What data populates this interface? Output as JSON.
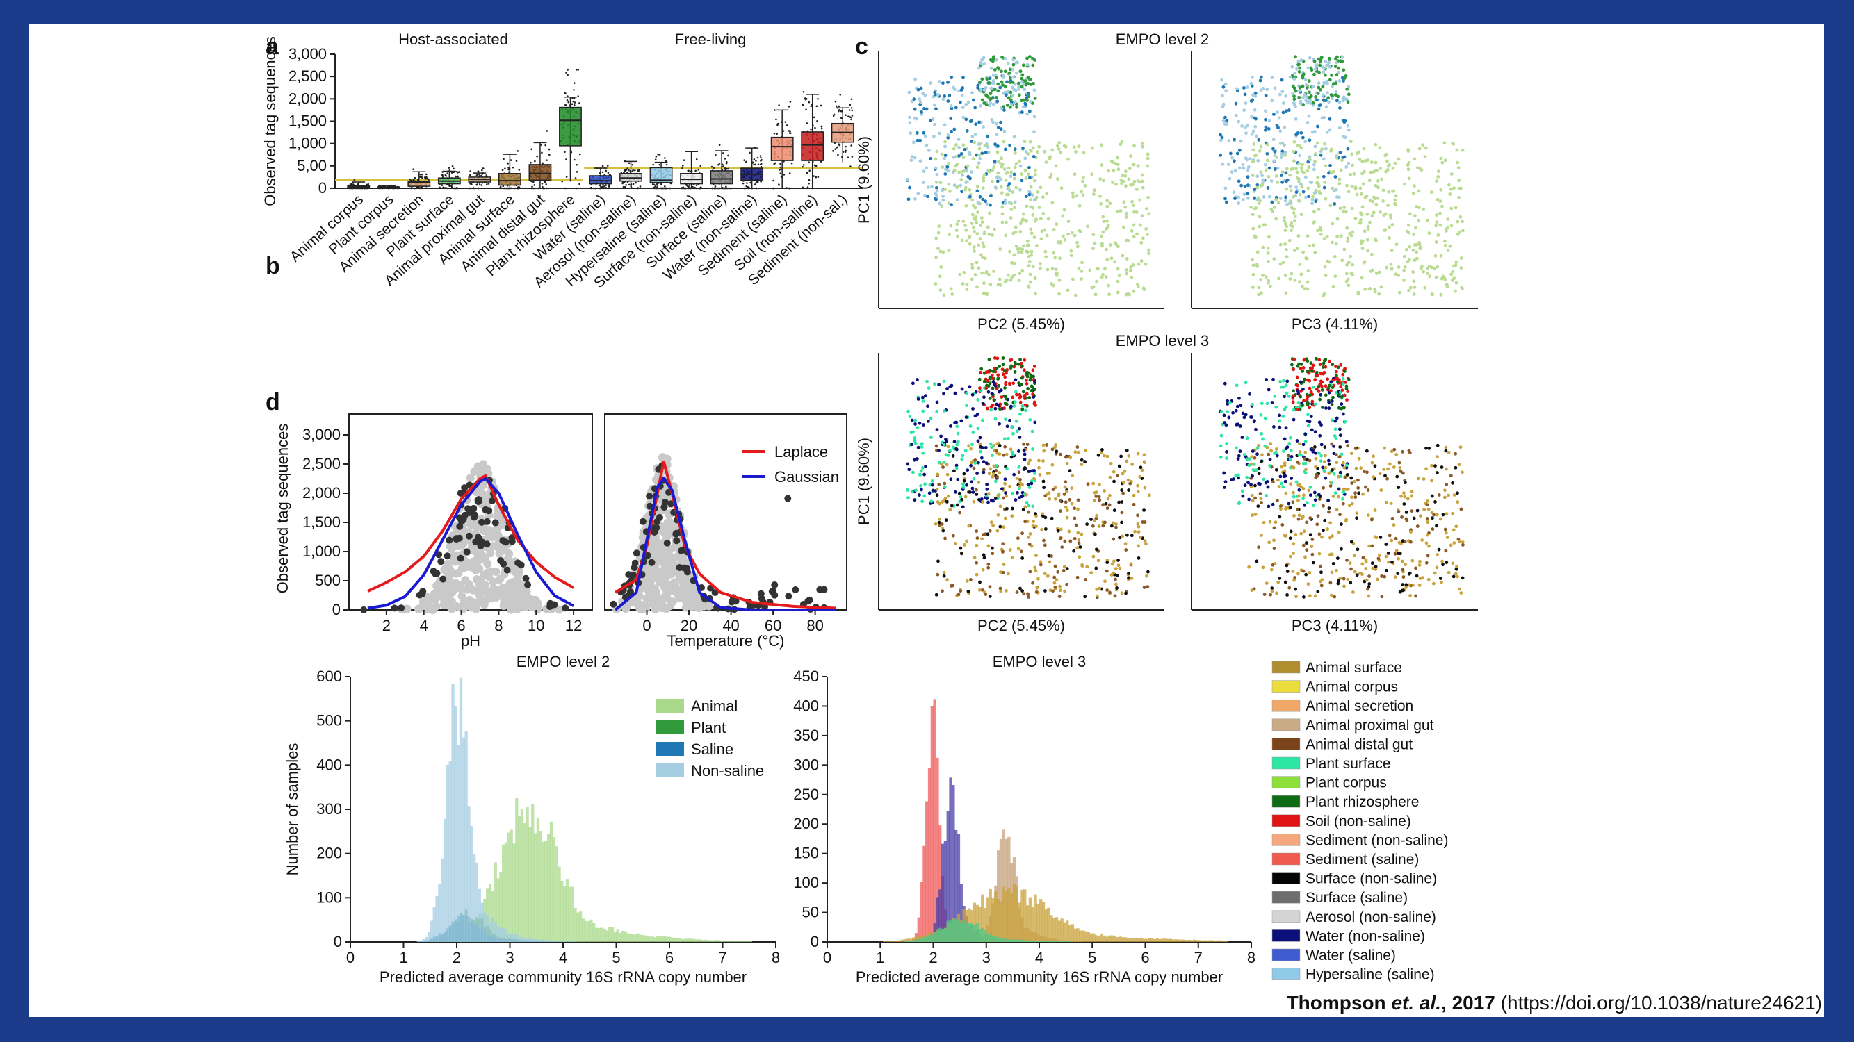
{
  "chart_data": [
    {
      "panel": "a",
      "type": "box",
      "group_titles": [
        "Host-associated",
        "Free-living"
      ],
      "ylabel": "Observed tag sequences",
      "yticks": [
        "0",
        "5,00",
        "1,000",
        "1,500",
        "2,000",
        "2,500",
        "3,000"
      ],
      "ylim": [
        0,
        3000
      ],
      "colors": [
        "#8a6d2f",
        "#d8c744",
        "#e6a877",
        "#6fd07a",
        "#d8b48e",
        "#a2793a",
        "#7b4a1f",
        "#1d8a25",
        "#2f4cc4",
        "#d3d3d3",
        "#8fcbe8",
        "#eeeeee",
        "#7a7a7a",
        "#0e1370",
        "#ef8b6f",
        "#c41b1b",
        "#e49a78"
      ],
      "categories": [
        "Animal corpus",
        "Plant corpus",
        "Animal secretion",
        "Plant surface",
        "Animal proximal gut",
        "Animal surface",
        "Animal distal gut",
        "Plant rhizosphere",
        "Water (saline)",
        "Aerosol (non-saline)",
        "Hypersaline (saline)",
        "Surface (non-saline)",
        "Surface (saline)",
        "Water (non-saline)",
        "Sediment (saline)",
        "Soil (non-saline)",
        "Sediment (non-sal.)"
      ],
      "q1": [
        10,
        5,
        45,
        100,
        140,
        70,
        180,
        950,
        100,
        160,
        130,
        100,
        100,
        180,
        620,
        620,
        1030
      ],
      "median": [
        30,
        15,
        130,
        160,
        200,
        170,
        330,
        1520,
        170,
        230,
        180,
        200,
        210,
        310,
        930,
        970,
        1250
      ],
      "q3": [
        55,
        30,
        155,
        230,
        250,
        330,
        530,
        1810,
        280,
        330,
        460,
        330,
        390,
        450,
        1140,
        1260,
        1450
      ],
      "whisker_low": [
        0,
        0,
        0,
        30,
        60,
        0,
        0,
        150,
        0,
        40,
        60,
        0,
        10,
        0,
        0,
        0,
        580
      ],
      "whisker_high": [
        140,
        60,
        370,
        380,
        340,
        760,
        1020,
        2040,
        450,
        600,
        580,
        820,
        840,
        900,
        1750,
        2100,
        1800
      ],
      "reference_line": 190,
      "reference_line_2": 450
    },
    {
      "panel": "b",
      "type": "scatter",
      "xlabel": "pH",
      "ylabel": "Observed tag sequences",
      "xticks": [
        "2",
        "4",
        "6",
        "8",
        "10",
        "12"
      ],
      "yticks": [
        "0",
        "500",
        "1,000",
        "1,500",
        "2,000",
        "2,500",
        "3,000"
      ],
      "xlim": [
        0,
        13
      ],
      "ylim": [
        0,
        3000
      ],
      "series": [
        {
          "name": "Laplace",
          "color": "#e41a1c",
          "x": [
            1,
            2,
            3,
            4,
            5,
            6,
            7,
            7.3,
            8,
            9,
            10,
            11,
            12
          ],
          "y": [
            320,
            470,
            650,
            920,
            1350,
            1900,
            2250,
            2300,
            1800,
            1200,
            820,
            560,
            380
          ]
        },
        {
          "name": "Gaussian",
          "color": "#1a1ad0",
          "x": [
            1,
            2,
            3,
            4,
            5,
            6,
            7,
            7.3,
            8,
            9,
            10,
            11,
            12
          ],
          "y": [
            30,
            80,
            230,
            600,
            1200,
            1800,
            2200,
            2250,
            2000,
            1300,
            650,
            240,
            70
          ]
        }
      ]
    },
    {
      "panel": "b",
      "type": "scatter",
      "xlabel": "Temperature (°C)",
      "xticks": [
        "0",
        "20",
        "40",
        "60",
        "80"
      ],
      "ylim": [
        0,
        3000
      ],
      "xlim": [
        -20,
        95
      ],
      "series": [
        {
          "name": "Laplace",
          "color": "#e41a1c",
          "x": [
            -15,
            -5,
            0,
            5,
            8,
            12,
            18,
            25,
            35,
            50,
            70,
            90
          ],
          "y": [
            300,
            520,
            1100,
            2000,
            2550,
            2000,
            1100,
            620,
            300,
            130,
            60,
            30
          ]
        },
        {
          "name": "Gaussian",
          "color": "#1a1ad0",
          "x": [
            -15,
            -5,
            0,
            5,
            8,
            12,
            18,
            25,
            35,
            50,
            70,
            90
          ],
          "y": [
            0,
            300,
            1200,
            2100,
            2250,
            2050,
            1200,
            300,
            40,
            0,
            0,
            0
          ]
        }
      ]
    },
    {
      "panel": "c",
      "type": "scatter",
      "title_l2": "EMPO level 2",
      "title_l3": "EMPO level 3",
      "ylabel": "PC1 (9.60%)",
      "xlabel_left": "PC2 (5.45%)",
      "xlabel_right": "PC3 (4.11%)"
    },
    {
      "panel": "d",
      "type": "histogram",
      "title": "EMPO level 2",
      "xlabel": "Predicted average community 16S rRNA copy number",
      "ylabel": "Number of samples",
      "xticks": [
        "0",
        "1",
        "2",
        "3",
        "4",
        "5",
        "6",
        "7",
        "8"
      ],
      "yticks": [
        "0",
        "100",
        "200",
        "300",
        "400",
        "500",
        "600"
      ],
      "xlim": [
        0,
        8
      ],
      "ylim": [
        0,
        600
      ],
      "series": [
        {
          "name": "Animal",
          "color": "#a9da8b",
          "peak_x": 3.35,
          "peak_y": 330,
          "spread": 0.55
        },
        {
          "name": "Plant",
          "color": "#2f9a3a",
          "peak_x": 2.2,
          "peak_y": 70,
          "spread": 0.3
        },
        {
          "name": "Saline",
          "color": "#1f78b4",
          "peak_x": 2.1,
          "peak_y": 60,
          "spread": 0.3
        },
        {
          "name": "Non-saline",
          "color": "#a6cee3",
          "peak_x": 2.0,
          "peak_y": 590,
          "spread": 0.22
        }
      ]
    },
    {
      "panel": "d",
      "type": "histogram",
      "title": "EMPO level 3",
      "xlabel": "Predicted average community 16S rRNA copy number",
      "xticks": [
        "0",
        "1",
        "2",
        "3",
        "4",
        "5",
        "6",
        "7",
        "8"
      ],
      "yticks": [
        "0",
        "50",
        "100",
        "150",
        "200",
        "250",
        "300",
        "350",
        "400",
        "450"
      ],
      "xlim": [
        0,
        8
      ],
      "ylim": [
        0,
        450
      ],
      "series": [
        {
          "name": "Sediment (saline)",
          "color": "#ef5b5b",
          "peak_x": 1.95,
          "peak_y": 410,
          "spread": 0.12
        },
        {
          "name": "Water (non-saline)",
          "color": "#4a3ea8",
          "peak_x": 2.3,
          "peak_y": 280,
          "spread": 0.15
        },
        {
          "name": "Animal proximal gut",
          "color": "#c4a07a",
          "peak_x": 3.35,
          "peak_y": 200,
          "spread": 0.18
        },
        {
          "name": "Animal surface",
          "color": "#c9a33c",
          "peak_x": 3.4,
          "peak_y": 90,
          "spread": 0.8
        },
        {
          "name": "Plant surface",
          "color": "#4cc98a",
          "peak_x": 2.5,
          "peak_y": 40,
          "spread": 0.4
        }
      ]
    }
  ],
  "panel_labels": [
    "a",
    "b",
    "c",
    "d"
  ],
  "legend_c": [
    {
      "label": "Animal surface",
      "color": "#b08d2e"
    },
    {
      "label": "Animal corpus",
      "color": "#ecdc3c"
    },
    {
      "label": "Animal secretion",
      "color": "#f0a869"
    },
    {
      "label": "Animal proximal gut",
      "color": "#c9ab86"
    },
    {
      "label": "Animal distal gut",
      "color": "#7a4319"
    },
    {
      "label": "Plant surface",
      "color": "#2ee6a4"
    },
    {
      "label": "Plant corpus",
      "color": "#8de03a"
    },
    {
      "label": "Plant rhizosphere",
      "color": "#0f6b13"
    },
    {
      "label": "Soil (non-saline)",
      "color": "#e01414"
    },
    {
      "label": "Sediment (non-saline)",
      "color": "#f5a77e"
    },
    {
      "label": "Sediment (saline)",
      "color": "#ef5b4e"
    },
    {
      "label": "Surface (non-saline)",
      "color": "#050505"
    },
    {
      "label": "Surface (saline)",
      "color": "#6d6d6d"
    },
    {
      "label": "Aerosol (non-saline)",
      "color": "#d4d4d4"
    },
    {
      "label": "Water (non-saline)",
      "color": "#0a0f7a"
    },
    {
      "label": "Water (saline)",
      "color": "#3e5bd0"
    },
    {
      "label": "Hypersaline (saline)",
      "color": "#8fcbe8"
    }
  ],
  "legend_b": [
    "Laplace",
    "Gaussian"
  ],
  "citation": {
    "authors": "Thompson ",
    "etal": "et. al.",
    "year": ", 2017",
    "doi": " (https://doi.org/10.1038/nature24621)"
  }
}
